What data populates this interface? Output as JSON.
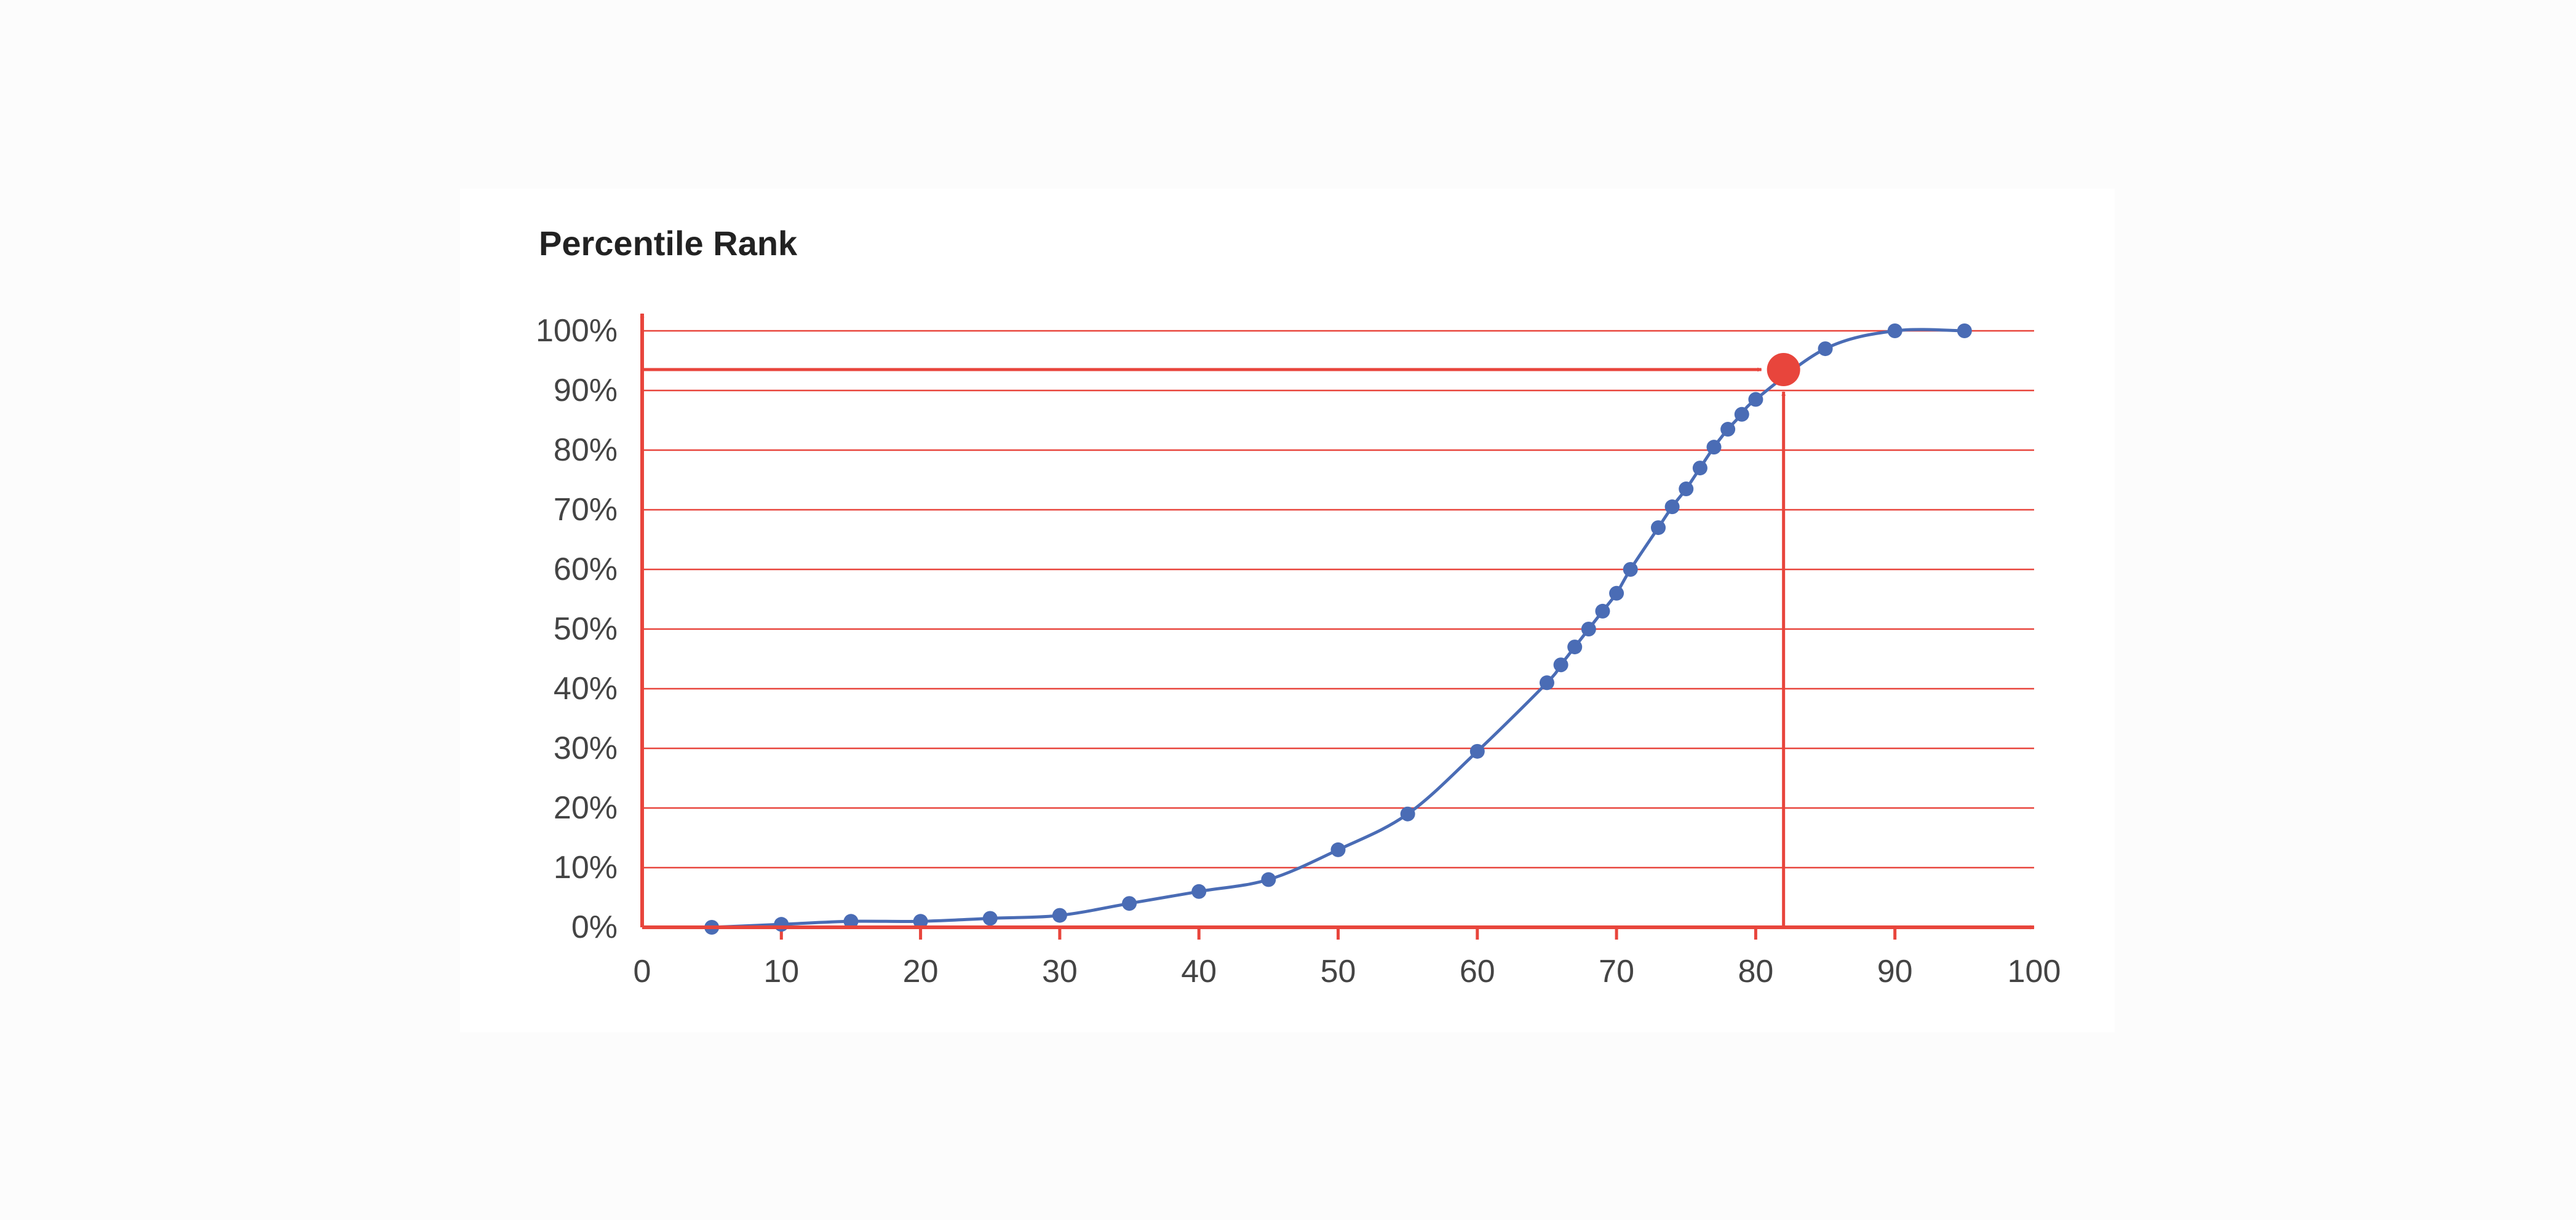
{
  "chart_data": {
    "type": "line",
    "title": "Percentile Rank",
    "xlabel": "",
    "ylabel": "",
    "xlim": [
      0,
      100
    ],
    "ylim": [
      0,
      100
    ],
    "x_ticks": [
      "0",
      "10",
      "20",
      "30",
      "40",
      "50",
      "60",
      "70",
      "80",
      "90",
      "100"
    ],
    "y_ticks": [
      "0%",
      "10%",
      "20%",
      "30%",
      "40%",
      "50%",
      "60%",
      "70%",
      "80%",
      "90%",
      "100%"
    ],
    "grid": "horizontal",
    "series": [
      {
        "values": [
          [
            5,
            0
          ],
          [
            10,
            0.5
          ],
          [
            15,
            1
          ],
          [
            20,
            1
          ],
          [
            25,
            1.5
          ],
          [
            30,
            2
          ],
          [
            35,
            4
          ],
          [
            40,
            6
          ],
          [
            45,
            8
          ],
          [
            50,
            13
          ],
          [
            55,
            19
          ],
          [
            60,
            29.5
          ],
          [
            65,
            41
          ],
          [
            66,
            44
          ],
          [
            67,
            47
          ],
          [
            68,
            50
          ],
          [
            69,
            53
          ],
          [
            70,
            56
          ],
          [
            71,
            60
          ],
          [
            73,
            67
          ],
          [
            74,
            70.5
          ],
          [
            75,
            73.5
          ],
          [
            76,
            77
          ],
          [
            77,
            80.5
          ],
          [
            78,
            83.5
          ],
          [
            79,
            86
          ],
          [
            80,
            88.5
          ],
          [
            85,
            97
          ],
          [
            90,
            100
          ],
          [
            95,
            100
          ]
        ]
      }
    ],
    "highlight": {
      "x": 82,
      "y": 93.5
    },
    "colors": {
      "series": "#4a6cb5",
      "axes": "#e8453c",
      "grid": "#e8453c",
      "highlight": "#e8453c"
    }
  }
}
